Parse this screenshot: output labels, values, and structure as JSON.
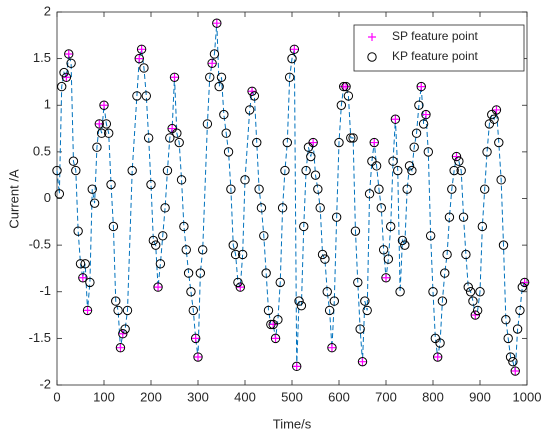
{
  "chart_data": {
    "type": "scatter",
    "xlabel": "Time/s",
    "ylabel": "Current /A",
    "xlim": [
      0,
      1000
    ],
    "ylim": [
      -2,
      2
    ],
    "xticks": [
      0,
      100,
      200,
      300,
      400,
      500,
      600,
      700,
      800,
      900,
      1000
    ],
    "yticks": [
      -2,
      -1.5,
      -1,
      -0.5,
      0,
      0.5,
      1,
      1.5,
      2
    ],
    "legend": "top-right",
    "series": [
      {
        "name": "SP feature point",
        "color": "#ff00ff",
        "marker": "+",
        "x": [
          20,
          25,
          55,
          65,
          90,
          100,
          135,
          140,
          175,
          180,
          215,
          245,
          250,
          295,
          300,
          330,
          340,
          390,
          415,
          460,
          465,
          505,
          510,
          545,
          585,
          610,
          615,
          650,
          675,
          700,
          720,
          775,
          785,
          810,
          850,
          890,
          935,
          975,
          995
        ],
        "values": [
          1.3,
          1.55,
          -0.85,
          -1.2,
          0.8,
          1.0,
          -1.6,
          -1.45,
          1.5,
          1.6,
          -0.95,
          0.75,
          1.3,
          -1.5,
          -1.7,
          1.45,
          1.88,
          -0.95,
          1.15,
          -1.35,
          -1.5,
          1.6,
          -1.8,
          0.6,
          -1.6,
          1.2,
          1.2,
          -1.75,
          0.6,
          -0.85,
          0.85,
          1.2,
          0.9,
          -1.7,
          0.45,
          -1.25,
          0.95,
          -1.85,
          -0.9
        ]
      },
      {
        "name": "KP feature point",
        "color": "#000000",
        "marker": "o",
        "line_color": "#0072bd",
        "line_style": "dashed",
        "x": [
          0,
          5,
          10,
          15,
          20,
          25,
          30,
          35,
          40,
          45,
          50,
          55,
          60,
          65,
          70,
          75,
          80,
          85,
          90,
          95,
          100,
          105,
          110,
          115,
          120,
          125,
          130,
          135,
          140,
          145,
          150,
          160,
          170,
          175,
          180,
          185,
          190,
          195,
          200,
          205,
          210,
          215,
          220,
          225,
          230,
          235,
          240,
          245,
          250,
          255,
          260,
          265,
          270,
          275,
          280,
          285,
          290,
          295,
          300,
          305,
          310,
          320,
          325,
          330,
          335,
          340,
          345,
          350,
          355,
          360,
          365,
          370,
          375,
          380,
          385,
          390,
          395,
          400,
          410,
          415,
          420,
          425,
          430,
          435,
          440,
          445,
          450,
          455,
          460,
          465,
          470,
          475,
          480,
          485,
          490,
          495,
          500,
          505,
          510,
          515,
          520,
          525,
          530,
          535,
          540,
          545,
          550,
          555,
          560,
          565,
          570,
          575,
          580,
          585,
          590,
          595,
          600,
          605,
          610,
          615,
          620,
          625,
          630,
          635,
          640,
          645,
          650,
          655,
          660,
          665,
          670,
          675,
          680,
          685,
          690,
          695,
          700,
          705,
          710,
          715,
          720,
          725,
          730,
          735,
          740,
          745,
          750,
          755,
          760,
          765,
          770,
          775,
          780,
          785,
          790,
          795,
          800,
          805,
          810,
          815,
          820,
          825,
          830,
          835,
          840,
          845,
          850,
          855,
          860,
          865,
          870,
          875,
          880,
          885,
          890,
          895,
          900,
          905,
          910,
          915,
          920,
          925,
          930,
          935,
          940,
          945,
          950,
          955,
          960,
          965,
          970,
          975,
          980,
          985,
          990,
          995
        ],
        "values": [
          0.3,
          0.05,
          1.2,
          1.35,
          1.3,
          1.55,
          1.45,
          0.4,
          0.3,
          -0.35,
          -0.7,
          -0.85,
          -0.7,
          -1.2,
          -0.9,
          0.1,
          -0.05,
          0.55,
          0.8,
          0.7,
          1.0,
          0.8,
          0.7,
          0.15,
          -0.3,
          -1.1,
          -1.2,
          -1.6,
          -1.45,
          -1.4,
          -1.2,
          0.3,
          1.1,
          1.5,
          1.6,
          1.4,
          1.1,
          0.65,
          0.15,
          -0.45,
          -0.5,
          -0.95,
          -0.7,
          -0.4,
          -0.1,
          0.3,
          0.65,
          0.75,
          1.3,
          0.7,
          0.6,
          0.2,
          -0.3,
          -0.55,
          -0.8,
          -1.0,
          -1.2,
          -1.5,
          -1.7,
          -0.8,
          -0.55,
          0.8,
          1.3,
          1.45,
          1.55,
          1.88,
          1.2,
          1.3,
          0.9,
          0.7,
          0.5,
          0.1,
          -0.5,
          -0.6,
          -0.9,
          -0.95,
          -0.6,
          0.2,
          0.95,
          1.15,
          1.1,
          0.6,
          0.1,
          -0.1,
          -0.4,
          -0.8,
          -1.2,
          -1.35,
          -1.35,
          -1.5,
          -1.3,
          -0.9,
          -0.1,
          0.3,
          0.6,
          1.3,
          1.5,
          1.6,
          -1.8,
          -1.1,
          -1.15,
          -0.3,
          0.3,
          0.55,
          0.45,
          0.6,
          0.25,
          0.1,
          -0.1,
          -0.6,
          -0.65,
          -1.0,
          -1.2,
          -1.6,
          -1.1,
          -0.2,
          0.6,
          1.0,
          1.2,
          1.2,
          1.1,
          0.65,
          0.65,
          -0.35,
          -0.9,
          -1.4,
          -1.75,
          -1.1,
          -1.2,
          0.05,
          0.4,
          0.6,
          0.35,
          0.1,
          -0.1,
          -0.55,
          -0.85,
          -0.65,
          -0.3,
          0.4,
          0.85,
          0.3,
          -1.0,
          -0.45,
          -0.5,
          0.1,
          0.35,
          0.3,
          0.55,
          0.7,
          1.0,
          1.2,
          0.8,
          0.9,
          0.5,
          -0.4,
          -1.0,
          -1.5,
          -1.7,
          -1.55,
          -1.1,
          -0.8,
          -0.6,
          -0.2,
          0.1,
          0.3,
          0.45,
          0.4,
          0.3,
          -0.2,
          -0.6,
          -0.95,
          -1.0,
          -1.1,
          -1.25,
          -1.2,
          -1.0,
          -0.3,
          0.1,
          0.5,
          0.8,
          0.9,
          0.85,
          0.95,
          0.6,
          0.2,
          -0.5,
          -1.3,
          -1.5,
          -1.7,
          -1.75,
          -1.85,
          -1.4,
          -1.2,
          -0.95,
          -0.9
        ]
      }
    ]
  }
}
